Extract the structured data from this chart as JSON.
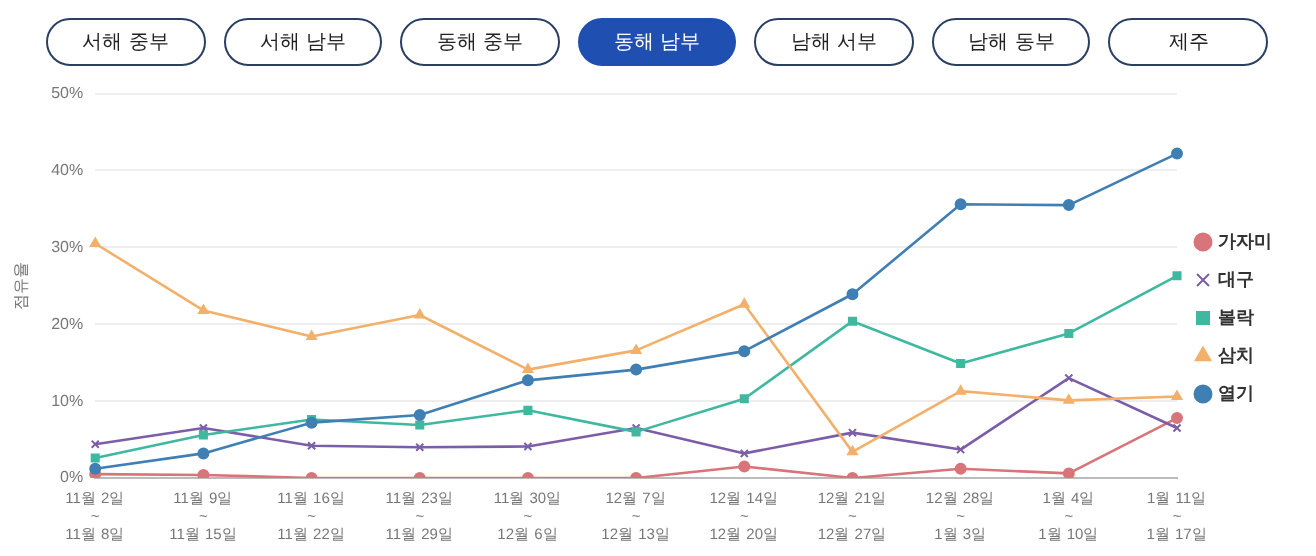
{
  "chart_data": {
    "type": "line",
    "ylabel": "점유율",
    "annotations": [
      "서해 중부",
      "서해 남부",
      "동해 중부",
      "동해 남부",
      "남해 서부",
      "남해 동부",
      "제주"
    ],
    "categories": [
      "11월 2일 ~ 11월 8일",
      "11월 9일 ~ 11월 15일",
      "11월 16일 ~ 11월 22일",
      "11월 23일 ~ 11월 29일",
      "11월 30일 ~ 12월 6일",
      "12월 7일 ~ 12월 13일",
      "12월 14일 ~ 12월 20일",
      "12월 21일 ~ 12월 27일",
      "12월 28일 ~ 1월 3일",
      "1월 4일 ~ 1월 10일",
      "1월 11일 ~ 1월 17일"
    ],
    "series": [
      {
        "name": "가자미",
        "color": "#d9747a",
        "marker": "circle",
        "values": [
          0.5,
          0.4,
          0,
          0,
          0,
          0,
          1.5,
          0,
          1.2,
          0.6,
          7.8
        ]
      },
      {
        "name": "대구",
        "color": "#7b5ea7",
        "marker": "cross",
        "values": [
          4.4,
          6.5,
          4.2,
          4.0,
          4.1,
          6.5,
          3.2,
          5.9,
          3.7,
          13.0,
          6.5
        ]
      },
      {
        "name": "볼락",
        "color": "#3fb8a0",
        "marker": "square",
        "values": [
          2.6,
          5.6,
          7.6,
          6.9,
          8.8,
          6.0,
          10.3,
          20.4,
          14.9,
          18.8,
          26.3
        ]
      },
      {
        "name": "삼치",
        "color": "#f2b06a",
        "marker": "triangle",
        "values": [
          30.5,
          21.8,
          18.4,
          21.2,
          14.1,
          16.6,
          22.6,
          3.4,
          11.3,
          10.1,
          10.6
        ]
      },
      {
        "name": "열기",
        "color": "#3f7fb3",
        "marker": "circle",
        "values": [
          1.2,
          3.2,
          7.2,
          8.2,
          12.7,
          14.1,
          16.5,
          23.9,
          35.6,
          35.5,
          42.2
        ]
      }
    ],
    "ylim": [
      0,
      50
    ],
    "yticks": [
      {
        "value": 0,
        "label": "0%"
      },
      {
        "value": 10,
        "label": "10%"
      },
      {
        "value": 20,
        "label": "20%"
      },
      {
        "value": 30,
        "label": "30%"
      },
      {
        "value": 40,
        "label": "40%"
      },
      {
        "value": 50,
        "label": "50%"
      }
    ],
    "grid": "y",
    "legend": "right",
    "line_style": "solid"
  }
}
